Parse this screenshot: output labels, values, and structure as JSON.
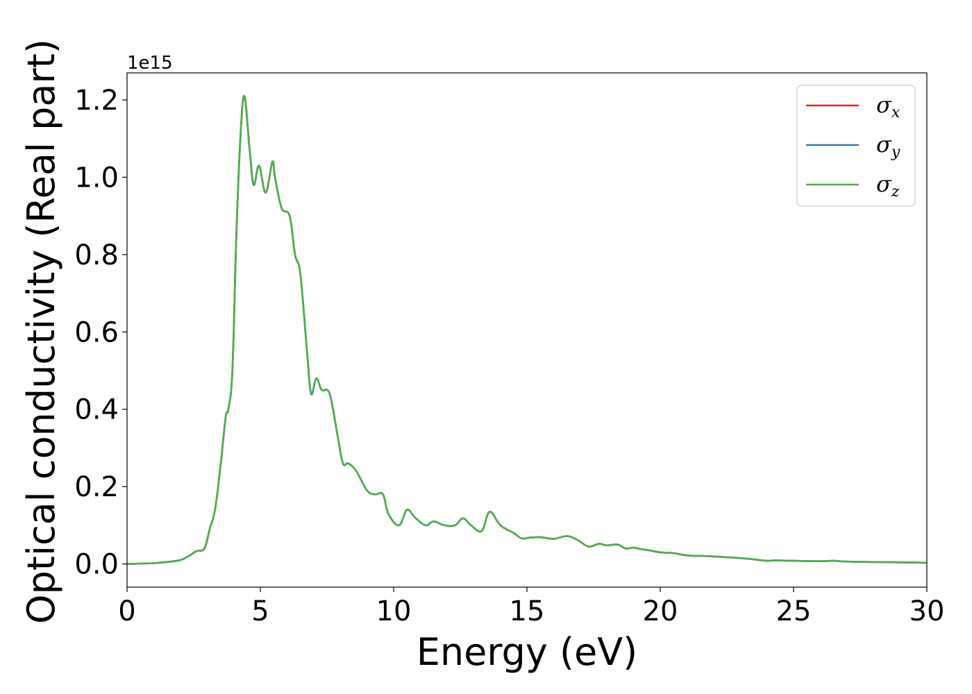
{
  "chart_data": {
    "type": "line",
    "title": "",
    "xlabel": "Energy (eV)",
    "ylabel": "Optical conductivity (Real part)",
    "y_offset_label": "1e15",
    "xlim": [
      0,
      30
    ],
    "ylim": [
      -0.06,
      1.27
    ],
    "x_ticks": [
      0,
      5,
      10,
      15,
      20,
      25,
      30
    ],
    "x_tick_labels": [
      "0",
      "5",
      "10",
      "15",
      "20",
      "25",
      "30"
    ],
    "y_ticks": [
      0.0,
      0.2,
      0.4,
      0.6,
      0.8,
      1.0,
      1.2
    ],
    "y_tick_labels": [
      "0.0",
      "0.2",
      "0.4",
      "0.6",
      "0.8",
      "1.0",
      "1.2"
    ],
    "grid": false,
    "legend_position": "top-right",
    "x": [
      0,
      1,
      1.5,
      2,
      2.3,
      2.6,
      2.9,
      3.1,
      3.3,
      3.5,
      3.7,
      3.8,
      3.95,
      4.1,
      4.25,
      4.4,
      4.6,
      4.75,
      4.95,
      5.2,
      5.45,
      5.55,
      5.8,
      6.1,
      6.3,
      6.5,
      6.75,
      6.9,
      7.1,
      7.3,
      7.6,
      7.9,
      8.1,
      8.3,
      8.6,
      9.0,
      9.3,
      9.6,
      9.8,
      10.2,
      10.5,
      10.8,
      11.2,
      11.5,
      11.9,
      12.3,
      12.6,
      12.9,
      13.3,
      13.6,
      14.0,
      14.5,
      14.8,
      15.1,
      15.5,
      16.0,
      16.5,
      16.9,
      17.3,
      17.7,
      18.0,
      18.4,
      18.7,
      19.0,
      19.3,
      19.6,
      20.0,
      20.5,
      21.0,
      21.8,
      22.3,
      23.0,
      23.5,
      24.0,
      24.3,
      25.0,
      26.0,
      26.5,
      27.0,
      28.0,
      29.0,
      30.0
    ],
    "series": [
      {
        "name": "σx",
        "color": "#d62728",
        "values": [
          0.0,
          0.002,
          0.005,
          0.01,
          0.02,
          0.033,
          0.04,
          0.09,
          0.14,
          0.25,
          0.38,
          0.4,
          0.5,
          0.85,
          1.1,
          1.21,
          1.07,
          0.98,
          1.03,
          0.96,
          1.04,
          1.0,
          0.92,
          0.9,
          0.8,
          0.75,
          0.55,
          0.44,
          0.48,
          0.45,
          0.44,
          0.33,
          0.26,
          0.26,
          0.24,
          0.19,
          0.18,
          0.18,
          0.13,
          0.1,
          0.14,
          0.12,
          0.1,
          0.11,
          0.1,
          0.1,
          0.118,
          0.1,
          0.085,
          0.135,
          0.1,
          0.08,
          0.066,
          0.068,
          0.069,
          0.065,
          0.072,
          0.062,
          0.045,
          0.052,
          0.048,
          0.05,
          0.04,
          0.042,
          0.038,
          0.035,
          0.03,
          0.028,
          0.022,
          0.02,
          0.018,
          0.015,
          0.012,
          0.008,
          0.009,
          0.008,
          0.007,
          0.008,
          0.006,
          0.005,
          0.004,
          0.003
        ]
      },
      {
        "name": "σy",
        "color": "#3b75af",
        "values": [
          0.0,
          0.002,
          0.005,
          0.01,
          0.02,
          0.033,
          0.04,
          0.09,
          0.14,
          0.25,
          0.38,
          0.4,
          0.5,
          0.85,
          1.1,
          1.21,
          1.07,
          0.98,
          1.03,
          0.96,
          1.04,
          1.0,
          0.92,
          0.9,
          0.8,
          0.75,
          0.55,
          0.44,
          0.48,
          0.45,
          0.44,
          0.33,
          0.26,
          0.26,
          0.24,
          0.19,
          0.18,
          0.18,
          0.13,
          0.1,
          0.14,
          0.12,
          0.1,
          0.11,
          0.1,
          0.1,
          0.118,
          0.1,
          0.085,
          0.135,
          0.1,
          0.08,
          0.066,
          0.068,
          0.069,
          0.065,
          0.072,
          0.062,
          0.045,
          0.052,
          0.048,
          0.05,
          0.04,
          0.042,
          0.038,
          0.035,
          0.03,
          0.028,
          0.022,
          0.02,
          0.018,
          0.015,
          0.012,
          0.008,
          0.009,
          0.008,
          0.007,
          0.008,
          0.006,
          0.005,
          0.004,
          0.003
        ]
      },
      {
        "name": "σz",
        "color": "#4daf4a",
        "values": [
          0.0,
          0.002,
          0.005,
          0.01,
          0.02,
          0.033,
          0.04,
          0.09,
          0.14,
          0.25,
          0.38,
          0.4,
          0.5,
          0.85,
          1.1,
          1.21,
          1.07,
          0.98,
          1.03,
          0.96,
          1.04,
          1.0,
          0.92,
          0.9,
          0.8,
          0.75,
          0.55,
          0.44,
          0.48,
          0.45,
          0.44,
          0.33,
          0.26,
          0.26,
          0.24,
          0.19,
          0.18,
          0.18,
          0.13,
          0.1,
          0.14,
          0.12,
          0.1,
          0.11,
          0.1,
          0.1,
          0.118,
          0.1,
          0.085,
          0.135,
          0.1,
          0.08,
          0.066,
          0.068,
          0.069,
          0.065,
          0.072,
          0.062,
          0.045,
          0.052,
          0.048,
          0.05,
          0.04,
          0.042,
          0.038,
          0.035,
          0.03,
          0.028,
          0.022,
          0.02,
          0.018,
          0.015,
          0.012,
          0.008,
          0.009,
          0.008,
          0.007,
          0.008,
          0.006,
          0.005,
          0.004,
          0.003
        ]
      }
    ]
  }
}
